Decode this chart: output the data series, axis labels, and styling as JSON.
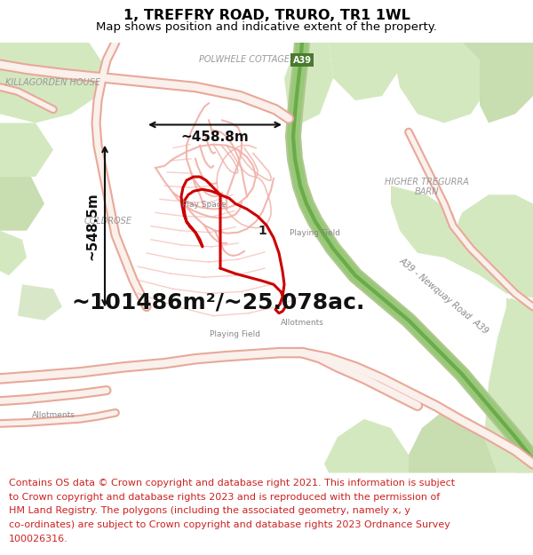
{
  "title": "1, TREFFRY ROAD, TRURO, TR1 1WL",
  "subtitle": "Map shows position and indicative extent of the property.",
  "area_text": "~101486m²/~25.078ac.",
  "dim1_text": "~548.5m",
  "dim2_text": "~458.8m",
  "property_label": "1",
  "footer_lines": [
    "Contains OS data © Crown copyright and database right 2021. This information is subject",
    "to Crown copyright and database rights 2023 and is reproduced with the permission of",
    "HM Land Registry. The polygons (including the associated geometry, namely x, y",
    "co-ordinates) are subject to Crown copyright and database rights 2023 Ordnance Survey",
    "100026316."
  ],
  "title_fontsize": 11.5,
  "subtitle_fontsize": 9.5,
  "area_fontsize": 18,
  "dim_fontsize": 11,
  "footer_fontsize": 8,
  "bg_color": "#f7f3ee",
  "green_color": "#d4e8c0",
  "green_color2": "#c8ddb0",
  "road_outer": "#e8a898",
  "road_inner": "#ffffff",
  "estate_road": "#f0b0a8",
  "polygon_red": "#cc0000",
  "text_dark": "#444444",
  "text_mid": "#888888",
  "footer_red": "#cc2222",
  "a39_green": "#98c878",
  "a39_green2": "#6aaa4a",
  "arrow_color": "#111111",
  "area_text_color": "#111111",
  "label_gray": "#888888",
  "name_gray": "#999999"
}
